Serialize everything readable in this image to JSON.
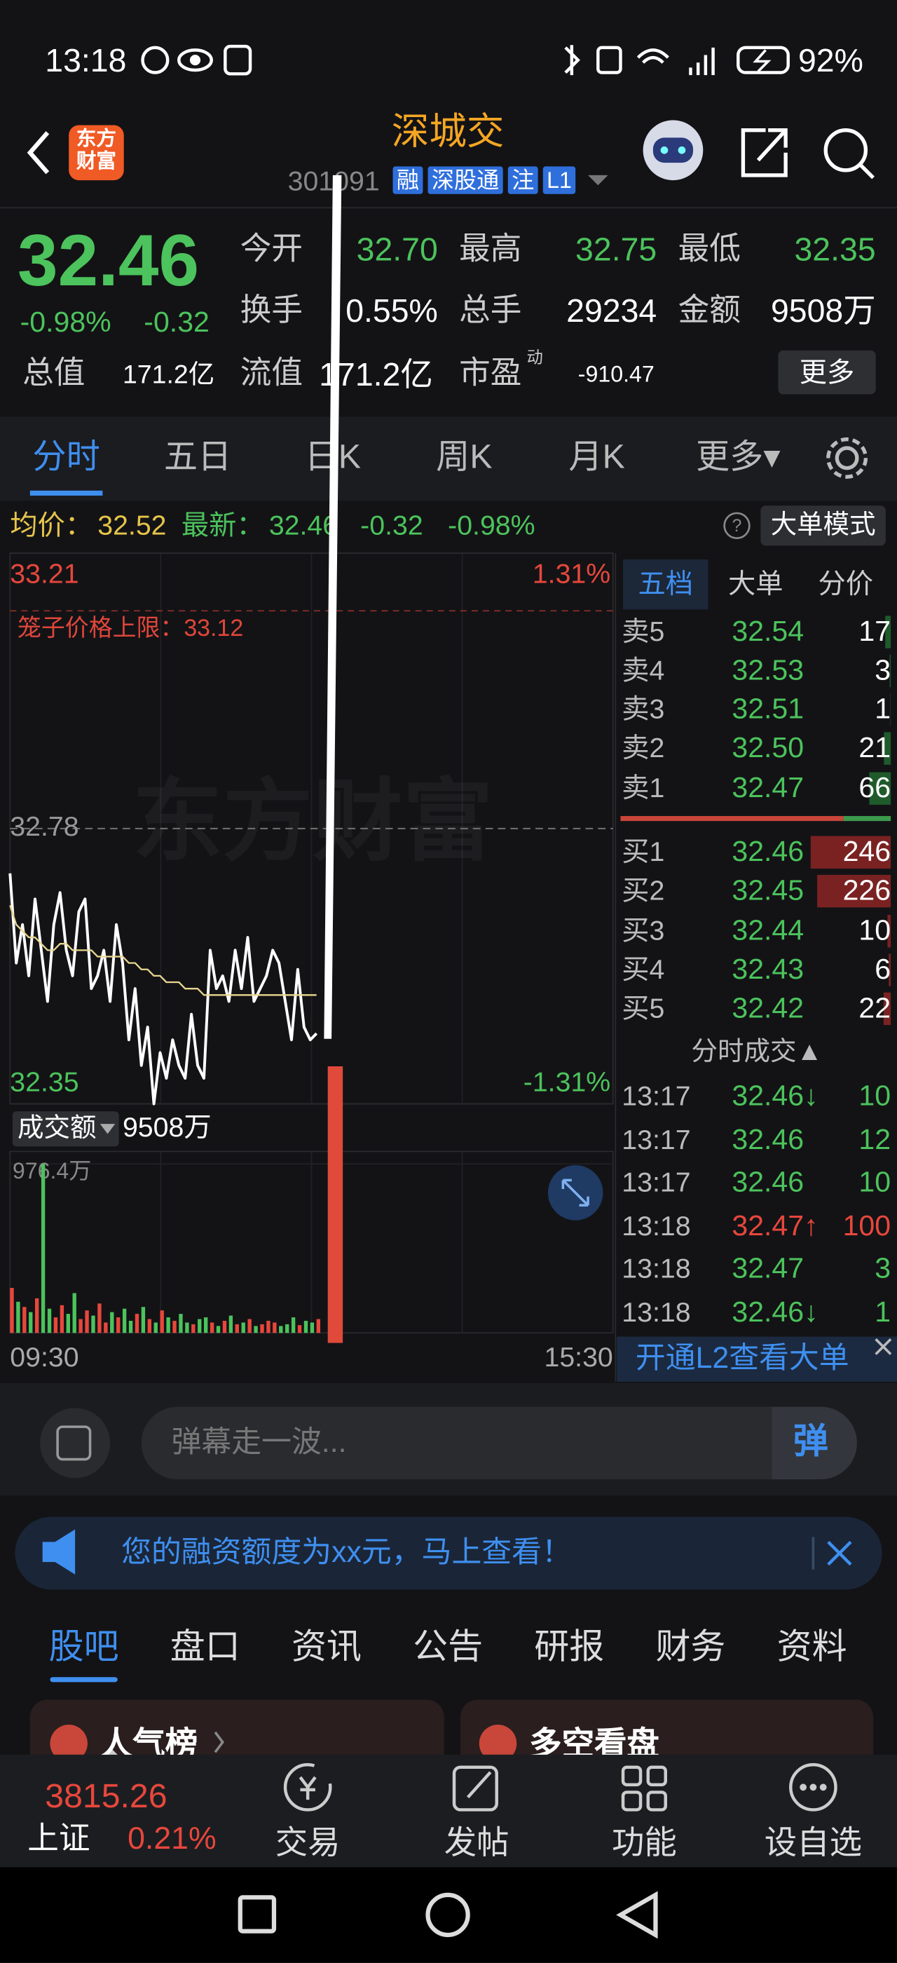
{
  "status_bar": {
    "time": "13:18",
    "battery": "92%"
  },
  "header": {
    "logo": "东方财富",
    "title": "深城交",
    "code": "301091",
    "tags": [
      "融",
      "深股通",
      "注",
      "L1"
    ]
  },
  "quote": {
    "price": "32.46",
    "change_pct": "-0.98%",
    "change": "-0.32",
    "stats": [
      {
        "label": "今开",
        "value": "32.70"
      },
      {
        "label": "最高",
        "value": "32.75"
      },
      {
        "label": "最低",
        "value": "32.35"
      },
      {
        "label": "换手",
        "value": "0.55%"
      },
      {
        "label": "总手",
        "value": "29234"
      },
      {
        "label": "金额",
        "value": "9508万"
      }
    ],
    "caps": [
      {
        "label": "总值",
        "value": "171.2亿"
      },
      {
        "label": "流值",
        "value": "171.2亿"
      },
      {
        "label": "市盈",
        "sup": "动",
        "value": "-910.47"
      }
    ],
    "more": "更多"
  },
  "tabs": {
    "items": [
      "分时",
      "五日",
      "日K",
      "周K",
      "月K",
      "更多▾"
    ],
    "active": 0
  },
  "info_bar": {
    "avg_label": "均价：",
    "avg": "32.52",
    "latest_label": "最新：",
    "latest": "32.46",
    "change": "-0.32",
    "change_pct": "-0.98%",
    "mode": "大单模式"
  },
  "chart_data": [
    {
      "type": "line",
      "watermark": "东方财富",
      "ylim": [
        32.35,
        33.21
      ],
      "yticks": [
        33.21,
        32.78,
        32.35
      ],
      "y2lim": [
        -1.31,
        1.31
      ],
      "y2ticks": [
        {
          "value": 1.31,
          "label": "1.31%"
        },
        {
          "value": -1.31,
          "label": "-1.31%"
        }
      ],
      "cage_limit": {
        "value": 33.12,
        "label": "笼子价格上限：33.12"
      },
      "series": [
        {
          "color": "#ffffff",
          "values": [
            32.71,
            32.57,
            32.63,
            32.55,
            32.67,
            32.59,
            32.51,
            32.63,
            32.68,
            32.59,
            32.55,
            32.65,
            32.67,
            32.53,
            32.55,
            32.59,
            32.51,
            32.63,
            32.57,
            32.45,
            32.53,
            32.41,
            32.47,
            32.35,
            32.43,
            32.39,
            32.45,
            32.41,
            32.39,
            32.49,
            32.41,
            32.39,
            32.59,
            32.53,
            32.55,
            32.51,
            32.59,
            32.53,
            32.61,
            32.51,
            32.53,
            32.55,
            32.59,
            32.57,
            32.51,
            32.45,
            32.56,
            32.47,
            32.45,
            32.46
          ]
        },
        {
          "color": "#e8d68e",
          "values": [
            32.66,
            32.63,
            32.62,
            32.61,
            32.61,
            32.6,
            32.59,
            32.59,
            32.6,
            32.6,
            32.59,
            32.59,
            32.59,
            32.59,
            32.58,
            32.58,
            32.58,
            32.58,
            32.58,
            32.57,
            32.57,
            32.56,
            32.56,
            32.55,
            32.55,
            32.54,
            32.54,
            32.54,
            32.53,
            32.53,
            32.53,
            32.52,
            32.52,
            32.52,
            32.52,
            32.52,
            32.52,
            32.52,
            32.52,
            32.52,
            32.52,
            32.52,
            32.52,
            32.52,
            32.52,
            32.52,
            32.52,
            32.52,
            32.52,
            32.52
          ]
        }
      ]
    },
    {
      "type": "bar",
      "label": "成交额",
      "total": "9508万",
      "ylim": [
        0,
        976.4
      ],
      "yticks": [
        {
          "value": 976.4,
          "label": "976.4万"
        }
      ],
      "xlabels": [
        "09:30",
        "15:30"
      ],
      "up_color": "#e8473c",
      "down_color": "#4cc35c",
      "values": [
        260,
        180,
        150,
        120,
        200,
        976.4,
        140,
        90,
        160,
        110,
        230,
        80,
        130,
        100,
        170,
        60,
        120,
        90,
        140,
        70,
        110,
        150,
        80,
        60,
        130,
        90,
        70,
        110,
        60,
        50,
        80,
        90,
        60,
        40,
        70,
        100,
        50,
        60,
        80,
        40,
        50,
        70,
        60,
        40,
        50,
        90,
        45,
        70,
        60,
        80
      ]
    }
  ],
  "order_book": {
    "tabs": [
      "五档",
      "大单",
      "分价"
    ],
    "asks": [
      {
        "label": "卖5",
        "price": "32.54",
        "qty": 17
      },
      {
        "label": "卖4",
        "price": "32.53",
        "qty": 3
      },
      {
        "label": "卖3",
        "price": "32.51",
        "qty": 1
      },
      {
        "label": "卖2",
        "price": "32.50",
        "qty": 21
      },
      {
        "label": "卖1",
        "price": "32.47",
        "qty": 66
      }
    ],
    "bids": [
      {
        "label": "买1",
        "price": "32.46",
        "qty": 246
      },
      {
        "label": "买2",
        "price": "32.45",
        "qty": 226
      },
      {
        "label": "买3",
        "price": "32.44",
        "qty": 10
      },
      {
        "label": "买4",
        "price": "32.43",
        "qty": 6
      },
      {
        "label": "买5",
        "price": "32.42",
        "qty": 22
      }
    ],
    "trades_title": "分时成交▲",
    "trades": [
      {
        "time": "13:17",
        "price": "32.46↓",
        "qty": 10,
        "color": "#4cc35c"
      },
      {
        "time": "13:17",
        "price": "32.46",
        "qty": 12,
        "color": "#4cc35c"
      },
      {
        "time": "13:17",
        "price": "32.46",
        "qty": 10,
        "color": "#4cc35c"
      },
      {
        "time": "13:18",
        "price": "32.47↑",
        "qty": 100,
        "color": "#e8473c"
      },
      {
        "time": "13:18",
        "price": "32.47",
        "qty": 3,
        "color": "#4cc35c"
      },
      {
        "time": "13:18",
        "price": "32.46↓",
        "qty": 1,
        "color": "#4cc35c"
      }
    ],
    "l2": "开通L2查看大单"
  },
  "comment": {
    "placeholder": "弹幕走一波...",
    "button": "弹"
  },
  "banner": {
    "text": "您的融资额度为xx元，马上查看！"
  },
  "section_tabs": {
    "items": [
      "股吧",
      "盘口",
      "资讯",
      "公告",
      "研报",
      "财务",
      "资料"
    ],
    "active": 0
  },
  "cards": [
    "人气榜",
    "多空看盘"
  ],
  "bottom_nav": {
    "index_value": "3815.26",
    "index_name": "上证",
    "index_change": "0.21%",
    "items": [
      "交易",
      "发帖",
      "功能",
      "设自选"
    ]
  }
}
